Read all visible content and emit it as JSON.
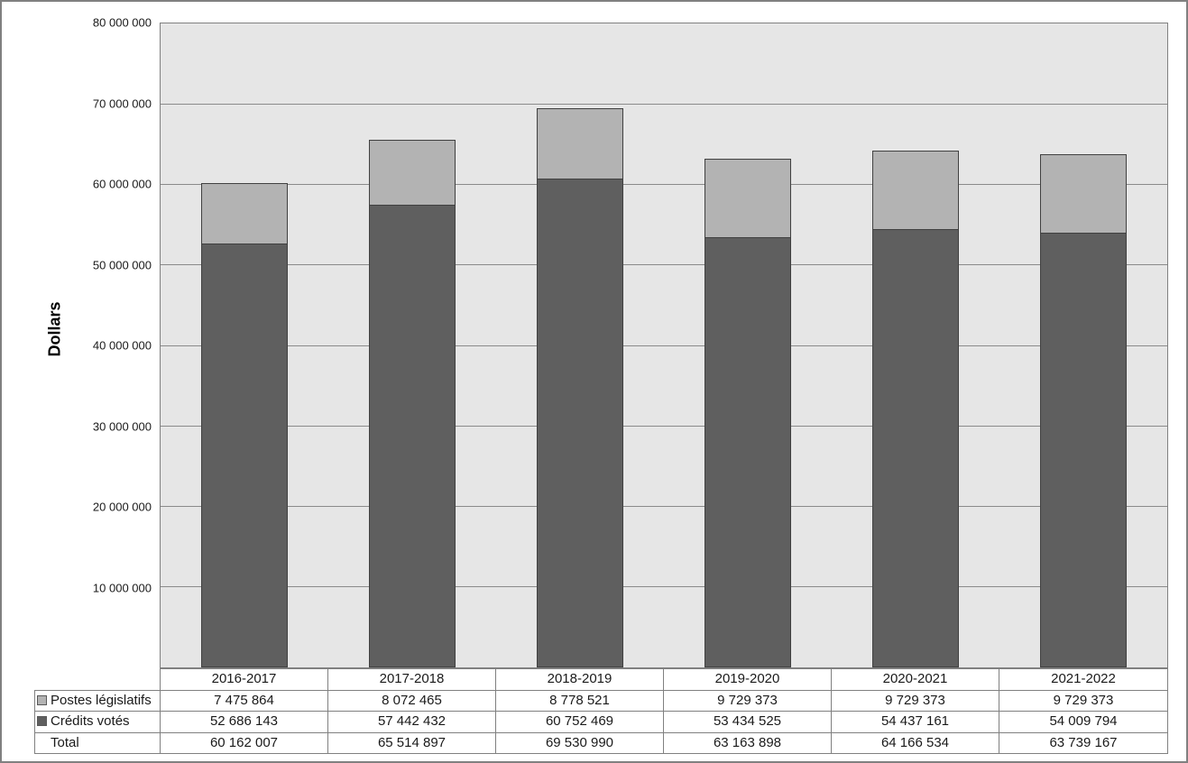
{
  "chart_data": {
    "type": "bar",
    "stacked": true,
    "title": "",
    "xlabel": "",
    "ylabel": "Dollars",
    "ylim": [
      0,
      80000000
    ],
    "ytick_interval": 10000000,
    "ytick_labels": [
      "80 000 000",
      "70 000 000",
      "60 000 000",
      "50 000 000",
      "40 000 000",
      "30 000 000",
      "20 000 000",
      "10 000 000"
    ],
    "grid": true,
    "legend_position": "data-table-left",
    "categories": [
      "2016-2017",
      "2017-2018",
      "2018-2019",
      "2019-2020",
      "2020-2021",
      "2021-2022"
    ],
    "series": [
      {
        "name": "Postes législatifs",
        "color": "#b3b3b3",
        "stack_position": "top",
        "values": [
          7475864,
          8072465,
          8778521,
          9729373,
          9729373,
          9729373
        ],
        "display_values": [
          "7 475 864",
          "8 072 465",
          "8 778 521",
          "9 729 373",
          "9 729 373",
          "9 729 373"
        ]
      },
      {
        "name": "Crédits votés",
        "color": "#5f5f5f",
        "stack_position": "bottom",
        "values": [
          52686143,
          57442432,
          60752469,
          53434525,
          54437161,
          54009794
        ],
        "display_values": [
          "52 686 143",
          "57 442 432",
          "60 752 469",
          "53 434 525",
          "54 437 161",
          "54 009 794"
        ]
      }
    ],
    "total_row": {
      "name": "Total",
      "values": [
        60162007,
        65514897,
        69530990,
        63163898,
        64166534,
        63739167
      ],
      "display_values": [
        "60 162 007",
        "65 514 897",
        "69 530 990",
        "63 163 898",
        "64 166 534",
        "63 739 167"
      ]
    },
    "colors": {
      "plot_background": "#e6e6e6",
      "gridline": "#8a8a8a",
      "bar_border": "#404040",
      "table_border": "#808080",
      "page_border": "#808080",
      "text": "#1a1a1a"
    }
  }
}
